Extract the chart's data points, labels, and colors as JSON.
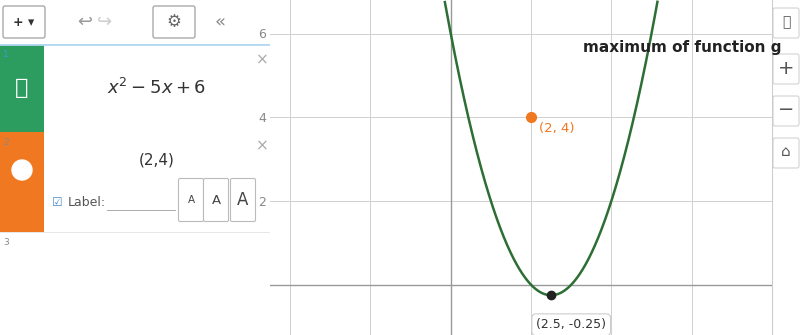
{
  "fig_width": 8.0,
  "fig_height": 3.35,
  "dpi": 100,
  "panel_bg": "#ffffff",
  "toolbar_bg": "#eeeeee",
  "icon1_color": "#2d9c5f",
  "icon2_color": "#f07820",
  "equation_text": "$x^2 - 5x + 6$",
  "point_text": "(2,4)",
  "label_text": "Label:",
  "graph_bg": "#ffffff",
  "grid_color": "#d0d0d0",
  "axis_color": "#999999",
  "curve_color": "#2d6e35",
  "curve_lw": 1.8,
  "xlim": [
    -4.5,
    8.0
  ],
  "ylim": [
    -1.2,
    6.8
  ],
  "vertex_x": 2.5,
  "vertex_y": -0.25,
  "vertex_color": "#222222",
  "vertex_label": "(2.5, -0.25)",
  "point_x": 2,
  "point_y": 4,
  "point_color": "#f07820",
  "annotation_text": "maximum of function g",
  "annotation_color": "#222222",
  "point_label_text": "(2, 4)",
  "point_label_color": "#f07820"
}
